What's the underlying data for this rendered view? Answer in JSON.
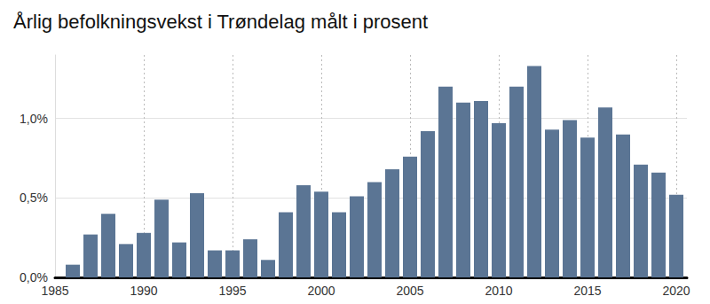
{
  "chart_data": {
    "type": "bar",
    "title": "Årlig befolkningsvekst i Trøndelag målt i prosent",
    "x": [
      1986,
      1987,
      1988,
      1989,
      1990,
      1991,
      1992,
      1993,
      1994,
      1995,
      1996,
      1997,
      1998,
      1999,
      2000,
      2001,
      2002,
      2003,
      2004,
      2005,
      2006,
      2007,
      2008,
      2009,
      2010,
      2011,
      2012,
      2013,
      2014,
      2015,
      2016,
      2017,
      2018,
      2019,
      2020
    ],
    "values": [
      0.08,
      0.27,
      0.4,
      0.21,
      0.28,
      0.49,
      0.22,
      0.53,
      0.17,
      0.17,
      0.24,
      0.11,
      0.41,
      0.58,
      0.54,
      0.41,
      0.51,
      0.6,
      0.68,
      0.76,
      0.92,
      1.2,
      1.1,
      1.11,
      0.97,
      1.2,
      1.33,
      0.93,
      0.99,
      0.88,
      1.07,
      0.9,
      0.71,
      0.66,
      0.52
    ],
    "color": "#5b7594",
    "xlim": [
      1985,
      2020.6
    ],
    "xticks": [
      1985,
      1990,
      1995,
      2000,
      2005,
      2010,
      2015,
      2020
    ],
    "ylim": [
      0,
      1.4
    ],
    "yticks": [
      {
        "value": 0,
        "label": "0,0%"
      },
      {
        "value": 0.5,
        "label": "0,5%"
      },
      {
        "value": 1.0,
        "label": "1,0%"
      }
    ],
    "grid": true
  }
}
